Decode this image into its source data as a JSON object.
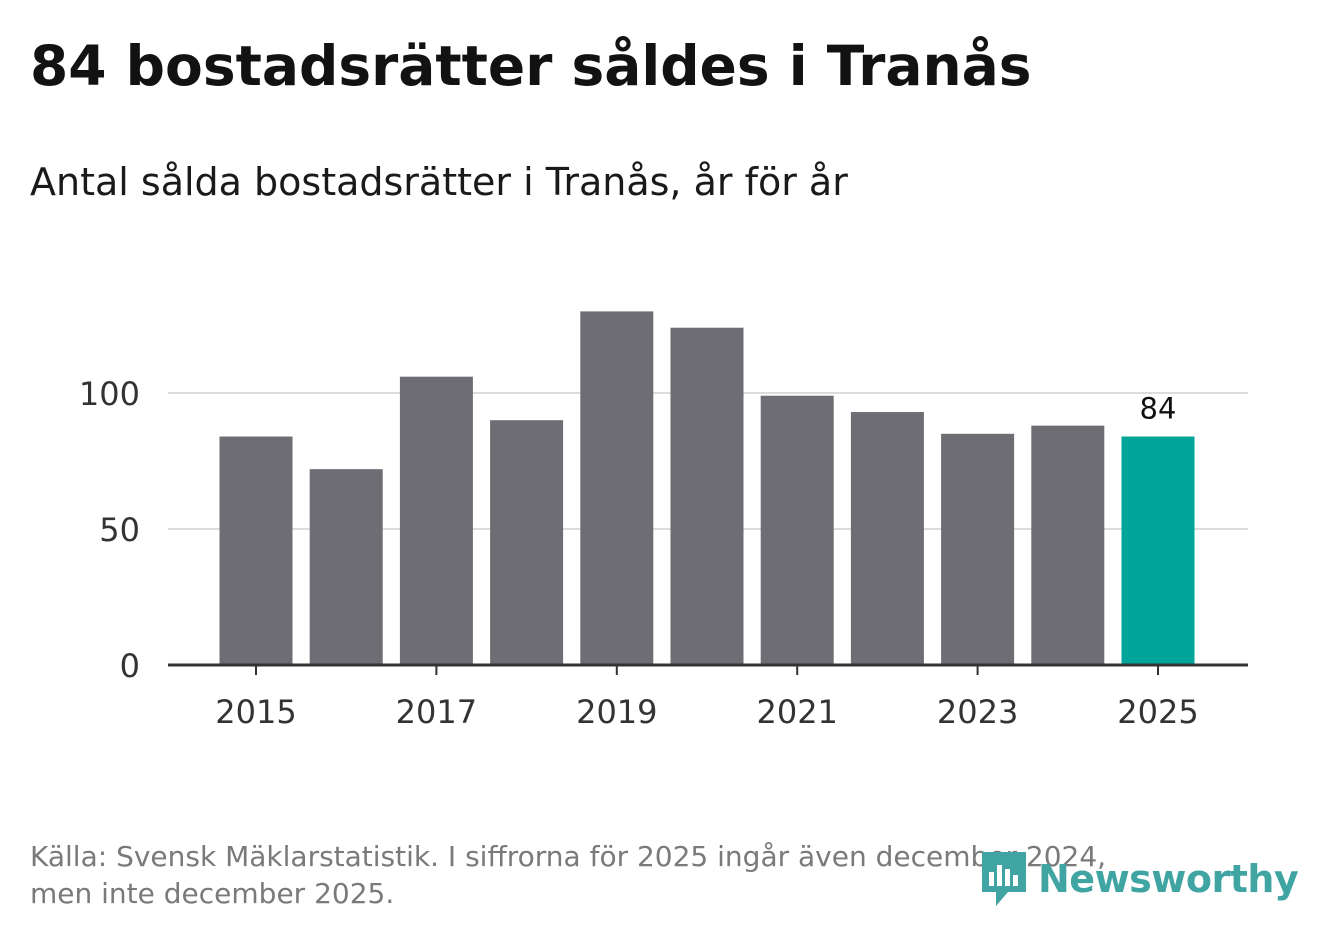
{
  "chart_data": {
    "type": "bar",
    "title": "84 bostadsrätter såldes i Tranås",
    "subtitle": "Antal sålda bostadsrätter i Tranås, år för år",
    "categories": [
      "2015",
      "2016",
      "2017",
      "2018",
      "2019",
      "2020",
      "2021",
      "2022",
      "2023",
      "2024",
      "2025"
    ],
    "values": [
      84,
      72,
      106,
      90,
      130,
      124,
      99,
      93,
      85,
      88,
      84
    ],
    "highlight_index": 10,
    "highlight_label": "84",
    "x_tick_labels": [
      "2015",
      "2017",
      "2019",
      "2021",
      "2023",
      "2025"
    ],
    "y_tick_values": [
      0,
      50,
      100
    ],
    "y_tick_labels": [
      "0",
      "50",
      "100"
    ],
    "ylim": [
      0,
      130
    ],
    "grid": true,
    "xlabel": "",
    "ylabel": ""
  },
  "colors": {
    "bar": "#6e6d73",
    "highlight": "#00a59a",
    "grid": "#dcdcdc",
    "axis": "#333333",
    "tick_text": "#333333"
  },
  "caption": {
    "line1": "Källa: Svensk Mäklarstatistik. I siffrorna för 2025 ingår även december 2024,",
    "line2": "men inte december 2025."
  },
  "logo": {
    "text": "Newsworthy",
    "icon": "newsworthy-bar-chart-icon"
  }
}
